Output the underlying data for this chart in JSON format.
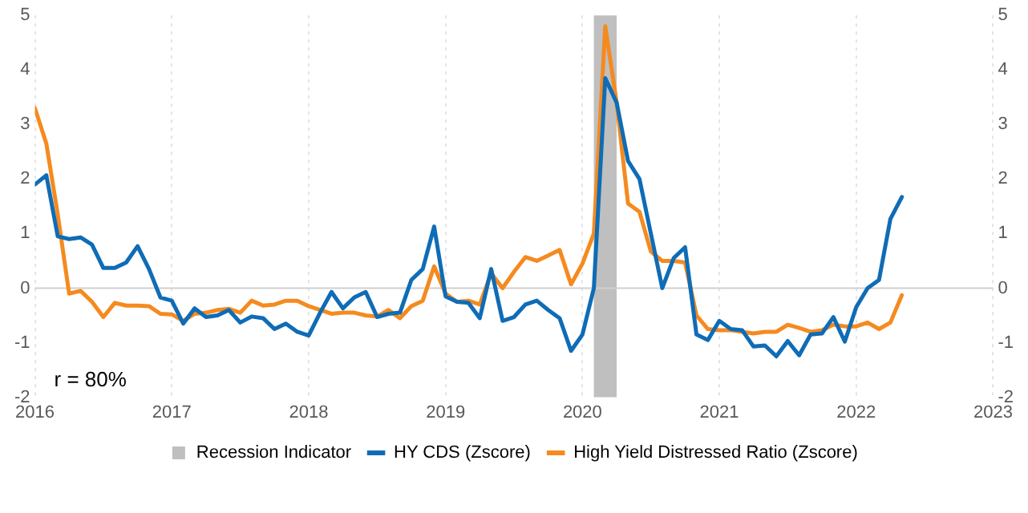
{
  "chart_data": {
    "type": "line",
    "x": [
      "2016-01",
      "2016-02",
      "2016-03",
      "2016-04",
      "2016-05",
      "2016-06",
      "2016-07",
      "2016-08",
      "2016-09",
      "2016-10",
      "2016-11",
      "2016-12",
      "2017-01",
      "2017-02",
      "2017-03",
      "2017-04",
      "2017-05",
      "2017-06",
      "2017-07",
      "2017-08",
      "2017-09",
      "2017-10",
      "2017-11",
      "2017-12",
      "2018-01",
      "2018-02",
      "2018-03",
      "2018-04",
      "2018-05",
      "2018-06",
      "2018-07",
      "2018-08",
      "2018-09",
      "2018-10",
      "2018-11",
      "2018-12",
      "2019-01",
      "2019-02",
      "2019-03",
      "2019-04",
      "2019-05",
      "2019-06",
      "2019-07",
      "2019-08",
      "2019-09",
      "2019-10",
      "2019-11",
      "2019-12",
      "2020-01",
      "2020-02",
      "2020-03",
      "2020-04",
      "2020-05",
      "2020-06",
      "2020-07",
      "2020-08",
      "2020-09",
      "2020-10",
      "2020-11",
      "2020-12",
      "2021-01",
      "2021-02",
      "2021-03",
      "2021-04",
      "2021-05",
      "2021-06",
      "2021-07",
      "2021-08",
      "2021-09",
      "2021-10",
      "2021-11",
      "2021-12",
      "2022-01",
      "2022-02",
      "2022-03",
      "2022-04",
      "2022-05"
    ],
    "series": [
      {
        "name": "HY CDS (Zscore)",
        "color": "#0f6cb6",
        "values": [
          1.9,
          2.07,
          0.95,
          0.9,
          0.93,
          0.8,
          0.37,
          0.37,
          0.47,
          0.77,
          0.35,
          -0.17,
          -0.23,
          -0.65,
          -0.37,
          -0.53,
          -0.5,
          -0.4,
          -0.63,
          -0.52,
          -0.55,
          -0.75,
          -0.65,
          -0.8,
          -0.87,
          -0.45,
          -0.07,
          -0.37,
          -0.17,
          -0.07,
          -0.53,
          -0.47,
          -0.45,
          0.15,
          0.35,
          1.13,
          -0.15,
          -0.25,
          -0.27,
          -0.55,
          0.35,
          -0.6,
          -0.53,
          -0.3,
          -0.23,
          -0.4,
          -0.55,
          -1.15,
          -0.85,
          0,
          3.85,
          3.4,
          2.33,
          2.0,
          1.0,
          0,
          0.55,
          0.75,
          -0.85,
          -0.95,
          -0.6,
          -0.75,
          -0.77,
          -1.07,
          -1.05,
          -1.25,
          -0.97,
          -1.23,
          -0.85,
          -0.83,
          -0.53,
          -0.98,
          -0.35,
          0,
          0.15,
          1.27,
          1.67
        ]
      },
      {
        "name": "High Yield Distressed Ratio (Zscore)",
        "color": "#f58a1f",
        "values": [
          3.3,
          2.65,
          1.35,
          -0.1,
          -0.05,
          -0.25,
          -0.53,
          -0.27,
          -0.32,
          -0.32,
          -0.33,
          -0.47,
          -0.48,
          -0.6,
          -0.47,
          -0.45,
          -0.4,
          -0.38,
          -0.45,
          -0.23,
          -0.32,
          -0.3,
          -0.23,
          -0.23,
          -0.33,
          -0.4,
          -0.47,
          -0.45,
          -0.45,
          -0.5,
          -0.52,
          -0.4,
          -0.55,
          -0.33,
          -0.23,
          0.4,
          -0.1,
          -0.25,
          -0.23,
          -0.3,
          0.27,
          0,
          0.3,
          0.57,
          0.5,
          0.6,
          0.7,
          0.07,
          0.45,
          1.0,
          4.8,
          3.4,
          1.55,
          1.4,
          0.67,
          0.5,
          0.5,
          0.47,
          -0.5,
          -0.75,
          -0.77,
          -0.77,
          -0.8,
          -0.83,
          -0.8,
          -0.8,
          -0.67,
          -0.73,
          -0.8,
          -0.77,
          -0.67,
          -0.7,
          -0.7,
          -0.63,
          -0.75,
          -0.63,
          -0.13
        ]
      }
    ],
    "xlim": [
      "2016",
      "2023"
    ],
    "xticks": [
      "2016",
      "2017",
      "2018",
      "2019",
      "2020",
      "2021",
      "2022",
      "2023"
    ],
    "ylim": [
      -2,
      5
    ],
    "yticks": [
      -2,
      -1,
      0,
      1,
      2,
      3,
      4,
      5
    ],
    "y2lim": [
      -2,
      5
    ],
    "y2ticks": [
      -2,
      -1,
      0,
      1,
      2,
      3,
      4,
      5
    ],
    "bands": [
      {
        "axis": "x",
        "from": "2020-02",
        "to": "2020-04",
        "label": "Recession Indicator",
        "color": "#bfbfbf"
      }
    ],
    "ref_lines": [
      {
        "axis": "y",
        "value": 0,
        "color": "#d0d0d0"
      }
    ],
    "annotations": [
      "r = 80%"
    ],
    "grid": "x",
    "legend": "bottom",
    "marker": "none",
    "line_style": "solid"
  }
}
